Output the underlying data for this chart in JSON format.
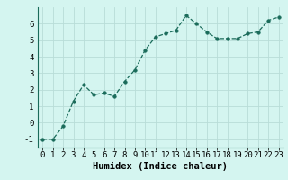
{
  "x": [
    0,
    1,
    2,
    3,
    4,
    5,
    6,
    7,
    8,
    9,
    10,
    11,
    12,
    13,
    14,
    15,
    16,
    17,
    18,
    19,
    20,
    21,
    22,
    23
  ],
  "y": [
    -1.0,
    -1.0,
    -0.2,
    1.3,
    2.3,
    1.7,
    1.8,
    1.6,
    2.5,
    3.2,
    4.4,
    5.2,
    5.4,
    5.6,
    6.5,
    6.0,
    5.5,
    5.1,
    5.1,
    5.1,
    5.4,
    5.5,
    6.2,
    6.4
  ],
  "xlabel": "Humidex (Indice chaleur)",
  "ylim": [
    -1.5,
    7.0
  ],
  "xlim": [
    -0.5,
    23.5
  ],
  "yticks": [
    -1,
    0,
    1,
    2,
    3,
    4,
    5,
    6
  ],
  "xticks": [
    0,
    1,
    2,
    3,
    4,
    5,
    6,
    7,
    8,
    9,
    10,
    11,
    12,
    13,
    14,
    15,
    16,
    17,
    18,
    19,
    20,
    21,
    22,
    23
  ],
  "line_color": "#1a6b5a",
  "marker_color": "#1a6b5a",
  "bg_color": "#d4f5f0",
  "grid_color": "#b8ddd8",
  "xlabel_fontsize": 7.5,
  "tick_fontsize": 6.5
}
